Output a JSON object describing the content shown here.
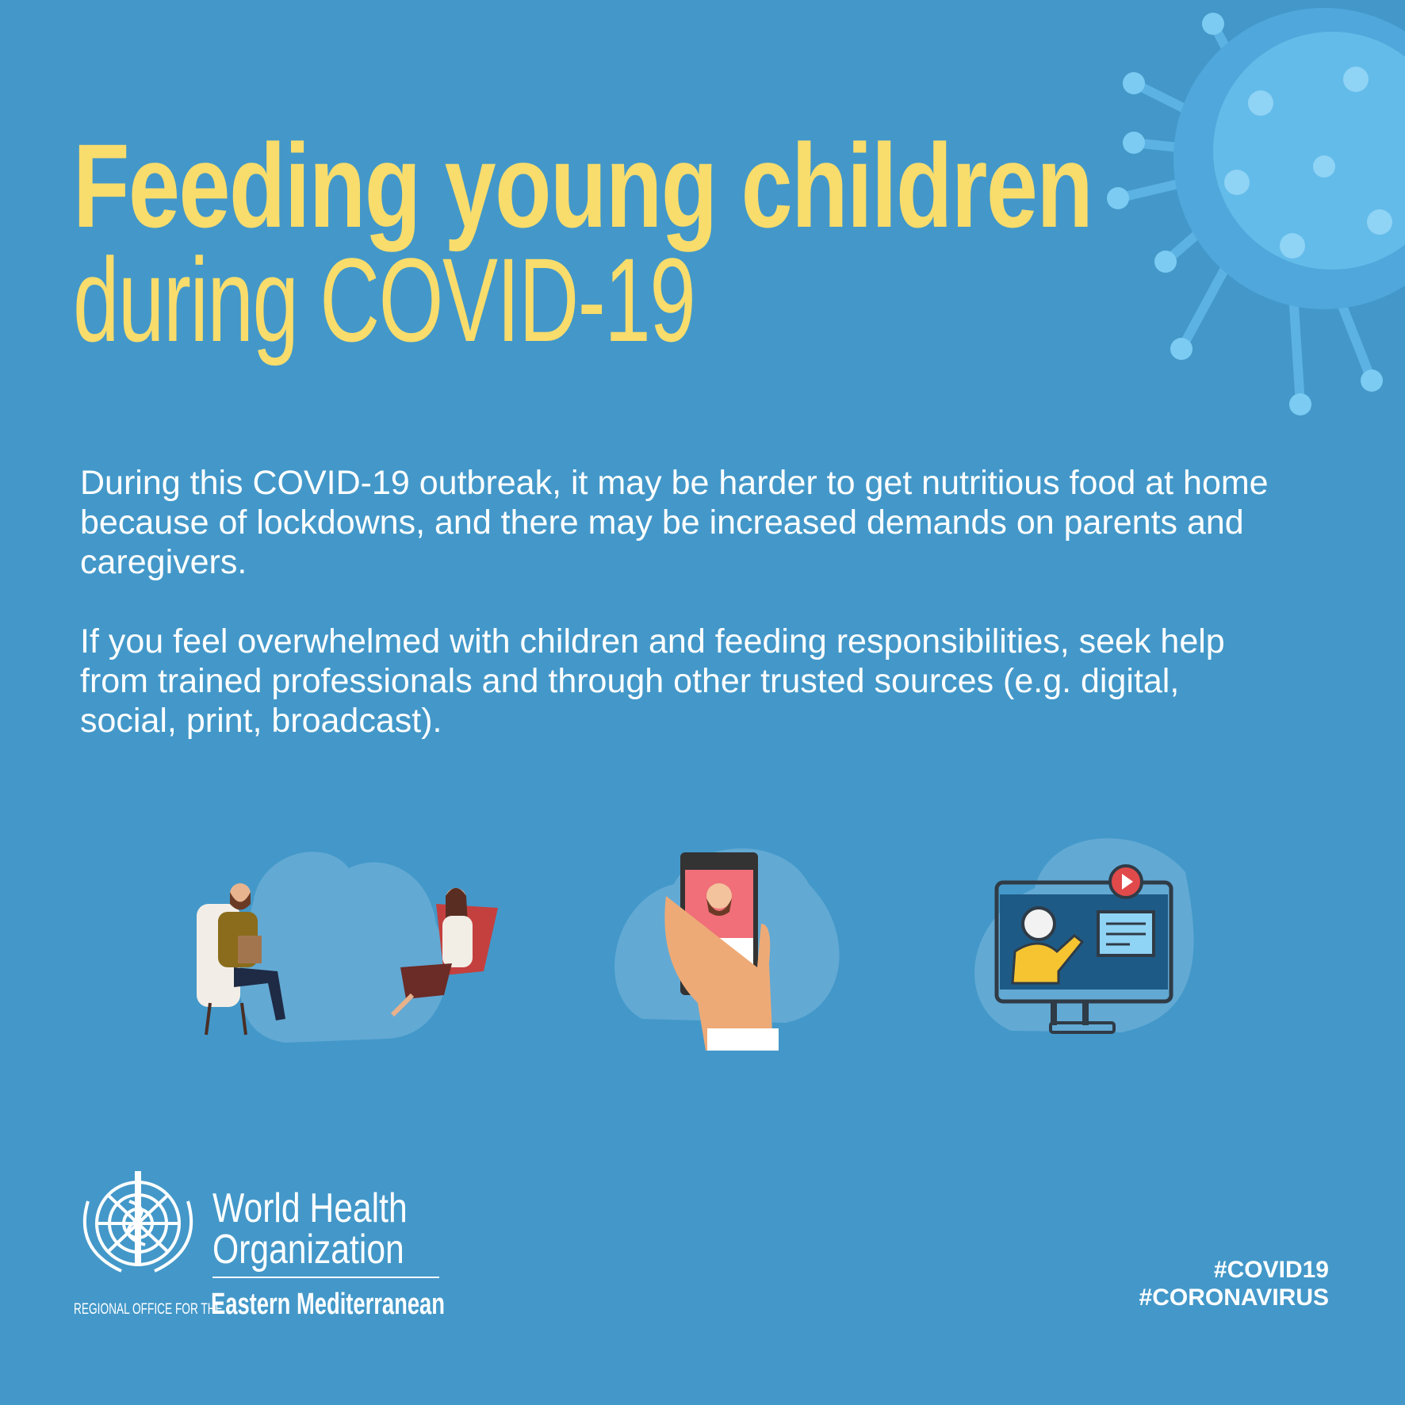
{
  "title": {
    "line1": "Feeding young children",
    "line2": "during COVID-19"
  },
  "body": {
    "paragraph1": "During this COVID-19 outbreak, it may be harder to get nutritious food at home because of lockdowns, and there may be increased demands on parents and caregivers.",
    "paragraph2": "If you feel overwhelmed with children and feeding responsibilities, seek help from trained professionals and through other trusted sources (e.g. digital, social, print, broadcast)."
  },
  "illustrations": [
    "counselling-session",
    "video-call-phone",
    "online-lesson-monitor"
  ],
  "logo": {
    "line1": "World Health",
    "line2": "Organization",
    "regional": "REGIONAL OFFICE FOR THE",
    "region": "Eastern Mediterranean"
  },
  "hashtags": [
    "#COVID19",
    "#CORONAVIRUS"
  ],
  "colors": {
    "background": "#4398c9",
    "title": "#f8dc6c",
    "text": "#ffffff",
    "virus": "#5fb6e6"
  }
}
